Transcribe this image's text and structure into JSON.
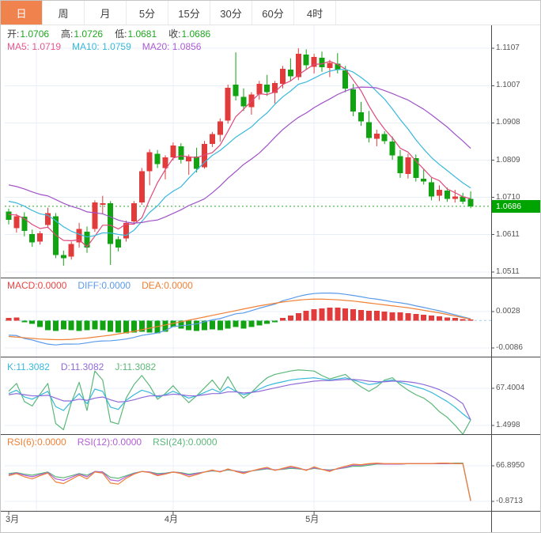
{
  "tabs": [
    {
      "label": "日",
      "active": true
    },
    {
      "label": "周",
      "active": false
    },
    {
      "label": "月",
      "active": false
    },
    {
      "label": "5分",
      "active": false
    },
    {
      "label": "15分",
      "active": false
    },
    {
      "label": "30分",
      "active": false
    },
    {
      "label": "60分",
      "active": false
    },
    {
      "label": "4时",
      "active": false
    }
  ],
  "legends": {
    "ohlc": {
      "label_color": "#3c3c3c",
      "value_color": "#21a621",
      "items": [
        {
          "label": "开:",
          "value": "1.0706"
        },
        {
          "label": "高:",
          "value": "1.0726"
        },
        {
          "label": "低:",
          "value": "1.0681"
        },
        {
          "label": "收:",
          "value": "1.0686"
        }
      ]
    },
    "ma": {
      "items": [
        {
          "label": "MA5: 1.0719",
          "color": "#e8588c"
        },
        {
          "label": "MA10: 1.0759",
          "color": "#38b8dc"
        },
        {
          "label": "MA20: 1.0856",
          "color": "#ab5bd4"
        }
      ]
    },
    "macd": {
      "items": [
        {
          "label": "MACD:0.0000",
          "color": "#e64545"
        },
        {
          "label": "DIFF:0.0000",
          "color": "#5b9bea"
        },
        {
          "label": "DEA:0.0000",
          "color": "#f08136"
        }
      ]
    },
    "kdj": {
      "items": [
        {
          "label": "K:11.3082",
          "color": "#38b8dc"
        },
        {
          "label": "D:11.3082",
          "color": "#8f6ad8"
        },
        {
          "label": "J:11.3082",
          "color": "#5cb879"
        }
      ]
    },
    "rsi": {
      "items": [
        {
          "label": "RSI(6):0.0000",
          "color": "#f08136"
        },
        {
          "label": "RSI(12):0.0000",
          "color": "#b35fd6"
        },
        {
          "label": "RSI(24):0.0000",
          "color": "#5cb879"
        }
      ]
    }
  },
  "colors": {
    "bull": "#e23b3b",
    "bear": "#12a312",
    "ma5": "#e0487c",
    "ma10": "#38b8dc",
    "ma20": "#a052c8",
    "diff": "#5b9bea",
    "dea": "#f08136",
    "k": "#38b8dc",
    "d": "#8f6ad8",
    "j": "#5cb879",
    "rsi6": "#f08136",
    "rsi12": "#b35fd6",
    "rsi24": "#5cb879",
    "grid": "#e9eff7",
    "divider": "#4a4a4a",
    "dotted": "#2aa52a",
    "zero_dash": "#9fd4e8",
    "tag_bg": "#00a400",
    "tab_active_bg": "#f0824d",
    "axis_text": "#555555"
  },
  "chart_data": {
    "type": "candlestick",
    "panels": [
      "price+MA",
      "MACD",
      "KDJ",
      "RSI"
    ],
    "price": {
      "ylim": [
        1.0511,
        1.1107
      ],
      "axis_ticks": [
        "1.1107",
        "1.1007",
        "1.0908",
        "1.0809",
        "1.0710",
        "1.0611",
        "1.0511"
      ],
      "current": "1.0686",
      "ma_windows": [
        5,
        10,
        20
      ],
      "ma_seeds": [
        1.0668,
        1.0705,
        1.0748
      ],
      "months": [
        {
          "label": "3月",
          "i": 0
        },
        {
          "label": "4月",
          "i": 21
        },
        {
          "label": "5月",
          "i": 39
        }
      ],
      "ohlc": [
        [
          1.0672,
          1.068,
          1.0638,
          1.065
        ],
        [
          1.0628,
          1.0666,
          1.0616,
          1.066
        ],
        [
          1.0658,
          1.067,
          1.0606,
          1.062
        ],
        [
          1.0612,
          1.0624,
          1.0578,
          1.059
        ],
        [
          1.0592,
          1.062,
          1.0584,
          1.0614
        ],
        [
          1.0636,
          1.0682,
          1.0628,
          1.0668
        ],
        [
          1.066,
          1.0668,
          1.0548,
          1.0556
        ],
        [
          1.0556,
          1.0568,
          1.0528,
          1.0548
        ],
        [
          1.0552,
          1.0592,
          1.0544,
          1.0586
        ],
        [
          1.059,
          1.0642,
          1.0576,
          1.0626
        ],
        [
          1.0618,
          1.0632,
          1.0562,
          1.0576
        ],
        [
          1.0626,
          1.0702,
          1.0618,
          1.0696
        ],
        [
          1.069,
          1.0714,
          1.0666,
          1.0694
        ],
        [
          1.0694,
          1.07,
          1.053,
          1.0586
        ],
        [
          1.0598,
          1.0606,
          1.0566,
          1.0576
        ],
        [
          1.06,
          1.0648,
          1.0592,
          1.0642
        ],
        [
          1.0646,
          1.07,
          1.0638,
          1.0694
        ],
        [
          1.0696,
          1.0788,
          1.069,
          1.078
        ],
        [
          1.078,
          1.0838,
          1.0742,
          1.083
        ],
        [
          1.0826,
          1.0836,
          1.0788,
          1.0798
        ],
        [
          1.0788,
          1.0822,
          1.0758,
          1.0816
        ],
        [
          1.0816,
          1.0856,
          1.0808,
          1.0848
        ],
        [
          1.0846,
          1.0854,
          1.08,
          1.081
        ],
        [
          1.0806,
          1.0824,
          1.077,
          1.0818
        ],
        [
          1.0818,
          1.0842,
          1.0776,
          1.0786
        ],
        [
          1.079,
          1.086,
          1.0786,
          1.0852
        ],
        [
          1.0852,
          1.0884,
          1.0844,
          1.0878
        ],
        [
          1.0876,
          1.092,
          1.0858,
          1.0912
        ],
        [
          1.0914,
          1.101,
          1.0906,
          1.1002
        ],
        [
          1.101,
          1.1096,
          1.0968,
          1.098
        ],
        [
          1.0978,
          1.1,
          1.094,
          1.0952
        ],
        [
          1.095,
          1.099,
          1.093,
          1.0984
        ],
        [
          1.0984,
          1.102,
          1.097,
          1.1012
        ],
        [
          1.101,
          1.1036,
          1.098,
          1.099
        ],
        [
          1.0988,
          1.102,
          1.096,
          1.1014
        ],
        [
          1.1012,
          1.106,
          1.1,
          1.1052
        ],
        [
          1.105,
          1.108,
          1.102,
          1.1032
        ],
        [
          1.103,
          1.1107,
          1.1022,
          1.1092
        ],
        [
          1.109,
          1.1104,
          1.105,
          1.1062
        ],
        [
          1.1058,
          1.1092,
          1.104,
          1.1084
        ],
        [
          1.1082,
          1.1098,
          1.1044,
          1.1056
        ],
        [
          1.1054,
          1.1076,
          1.103,
          1.1068
        ],
        [
          1.1066,
          1.1094,
          1.104,
          1.105
        ],
        [
          1.1048,
          1.106,
          1.099,
          1.1
        ],
        [
          1.0998,
          1.1012,
          1.0926,
          1.0938
        ],
        [
          1.0936,
          1.0964,
          1.09,
          1.0912
        ],
        [
          1.091,
          1.094,
          1.0856,
          1.0868
        ],
        [
          1.0866,
          1.089,
          1.0846,
          1.088
        ],
        [
          1.0878,
          1.0886,
          1.0852,
          1.086
        ],
        [
          1.0858,
          1.0872,
          1.081,
          1.0822
        ],
        [
          1.082,
          1.0836,
          1.0762,
          1.0774
        ],
        [
          1.0772,
          1.0826,
          1.076,
          1.0816
        ],
        [
          1.0814,
          1.0824,
          1.0752,
          1.0762
        ],
        [
          1.076,
          1.0784,
          1.0744,
          1.0752
        ],
        [
          1.075,
          1.0762,
          1.0702,
          1.0712
        ],
        [
          1.0714,
          1.0742,
          1.07,
          1.073
        ],
        [
          1.0728,
          1.0736,
          1.0698,
          1.0706
        ],
        [
          1.0706,
          1.073,
          1.0696,
          1.0712
        ],
        [
          1.0712,
          1.0722,
          1.0692,
          1.0698
        ],
        [
          1.0706,
          1.0726,
          1.0681,
          1.0686
        ]
      ]
    },
    "macd": {
      "unit": 0.0001,
      "ticks": [
        {
          "label": "0.0028",
          "v": 28
        },
        {
          "label": "-0.0086",
          "v": -86
        }
      ],
      "hist": [
        8,
        10,
        -5,
        -10,
        -20,
        -30,
        -33,
        -28,
        -30,
        -33,
        -30,
        -28,
        -30,
        -35,
        -38,
        -40,
        -38,
        -35,
        -38,
        -40,
        -35,
        -20,
        -25,
        -30,
        -33,
        -30,
        -28,
        -30,
        -25,
        -20,
        -25,
        -20,
        -15,
        -10,
        -5,
        8,
        15,
        23,
        30,
        35,
        38,
        40,
        40,
        38,
        35,
        33,
        30,
        30,
        28,
        25,
        25,
        23,
        20,
        18,
        15,
        13,
        10,
        8,
        5,
        3
      ],
      "dea": [
        -50,
        -52,
        -54,
        -56,
        -58,
        -59,
        -60,
        -60,
        -59,
        -57,
        -55,
        -52,
        -49,
        -46,
        -42,
        -38,
        -34,
        -29,
        -24,
        -19,
        -14,
        -9,
        -4,
        1,
        6,
        11,
        16,
        21,
        26,
        31,
        36,
        41,
        46,
        50,
        54,
        58,
        61,
        64,
        66,
        67,
        67,
        66,
        65,
        63,
        61,
        58,
        55,
        52,
        49,
        46,
        43,
        40,
        36,
        32,
        28,
        24,
        19,
        14,
        9,
        4
      ]
    },
    "kdj": {
      "ticks": [
        {
          "label": "67.4004",
          "v": 67.4004
        },
        {
          "label": "1.4998",
          "v": 1.4998
        }
      ],
      "k": [
        58,
        64,
        52,
        48,
        55,
        62,
        35,
        28,
        44,
        58,
        40,
        66,
        62,
        34,
        30,
        46,
        56,
        64,
        60,
        52,
        56,
        62,
        56,
        50,
        54,
        60,
        66,
        60,
        70,
        62,
        56,
        60,
        66,
        72,
        76,
        79,
        82,
        84,
        85,
        86,
        84,
        82,
        84,
        86,
        82,
        78,
        74,
        76,
        80,
        82,
        78,
        74,
        70,
        66,
        60,
        52,
        44,
        34,
        22,
        11.3
      ],
      "d": [
        56,
        58,
        56,
        54,
        54,
        55,
        50,
        45,
        45,
        48,
        46,
        50,
        52,
        47,
        43,
        44,
        47,
        51,
        54,
        54,
        55,
        57,
        56,
        54,
        54,
        56,
        58,
        58,
        61,
        61,
        59,
        60,
        62,
        65,
        68,
        71,
        74,
        76,
        78,
        80,
        81,
        81,
        82,
        83,
        83,
        82,
        80,
        79,
        79,
        80,
        80,
        79,
        77,
        74,
        70,
        65,
        58,
        50,
        40,
        11.3
      ]
    },
    "rsi": {
      "ticks": [
        {
          "label": "66.8950",
          "v": 66.895
        },
        {
          "label": "-0.8713",
          "v": -0.8713
        }
      ],
      "rsi6": [
        48,
        52,
        46,
        42,
        48,
        53,
        36,
        33,
        41,
        49,
        42,
        55,
        53,
        34,
        32,
        43,
        51,
        56,
        54,
        48,
        51,
        55,
        52,
        46,
        50,
        55,
        59,
        55,
        61,
        56,
        52,
        57,
        61,
        64,
        58,
        62,
        66,
        63,
        58,
        65,
        60,
        56,
        62,
        66,
        70,
        69,
        71,
        72,
        71,
        71,
        71,
        71,
        71,
        71,
        71,
        72,
        72,
        71,
        71,
        0
      ],
      "rsi12": [
        50,
        53,
        49,
        46,
        50,
        54,
        42,
        39,
        45,
        51,
        46,
        56,
        55,
        40,
        38,
        46,
        52,
        56,
        55,
        50,
        52,
        55,
        53,
        49,
        52,
        55,
        58,
        56,
        60,
        57,
        54,
        57,
        60,
        62,
        59,
        61,
        64,
        62,
        59,
        63,
        60,
        58,
        61,
        64,
        68,
        68,
        70,
        71,
        70,
        70,
        70,
        71,
        71,
        71,
        71,
        71,
        71,
        71,
        71,
        0
      ],
      "rsi24": [
        52,
        54,
        51,
        49,
        52,
        55,
        46,
        44,
        48,
        52,
        49,
        56,
        55,
        45,
        43,
        48,
        53,
        56,
        55,
        52,
        53,
        55,
        54,
        51,
        53,
        55,
        57,
        56,
        59,
        57,
        55,
        57,
        59,
        61,
        59,
        60,
        62,
        61,
        59,
        62,
        60,
        59,
        61,
        63,
        66,
        66,
        68,
        70,
        70,
        70,
        70,
        71,
        71,
        71,
        71,
        71,
        71,
        72,
        72,
        0
      ]
    }
  }
}
